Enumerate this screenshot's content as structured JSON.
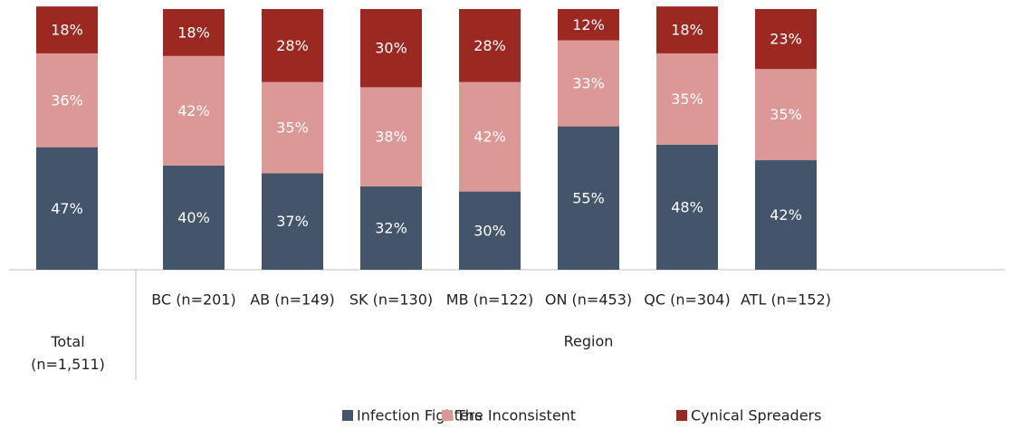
{
  "chart_data": {
    "type": "stacked_bar",
    "categories": [
      "Total (n=1,511)",
      "BC (n=201)",
      "AB (n=149)",
      "SK (n=130)",
      "MB (n=122)",
      "ON (n=453)",
      "QC (n=304)",
      "ATL (n=152)"
    ],
    "group_label": "Region",
    "ylim": [
      0,
      100
    ],
    "series": [
      {
        "name": "Infection Fighters",
        "color": "#44546a",
        "values": [
          47,
          40,
          37,
          32,
          30,
          55,
          48,
          42
        ],
        "value_labels": [
          "47%",
          "40%",
          "37%",
          "32%",
          "30%",
          "55%",
          "48%",
          "42%"
        ]
      },
      {
        "name": "The Inconsistent",
        "color": "#dc9896",
        "values": [
          36,
          42,
          35,
          38,
          42,
          33,
          35,
          35
        ],
        "value_labels": [
          "36%",
          "42%",
          "35%",
          "38%",
          "42%",
          "33%",
          "35%",
          "35%"
        ]
      },
      {
        "name": "Cynical Spreaders",
        "color": "#9b2922",
        "values": [
          18,
          18,
          28,
          30,
          28,
          12,
          18,
          23
        ],
        "value_labels": [
          "18%",
          "18%",
          "28%",
          "30%",
          "28%",
          "12%",
          "18%",
          "23%"
        ]
      }
    ],
    "legend": "bottom"
  }
}
